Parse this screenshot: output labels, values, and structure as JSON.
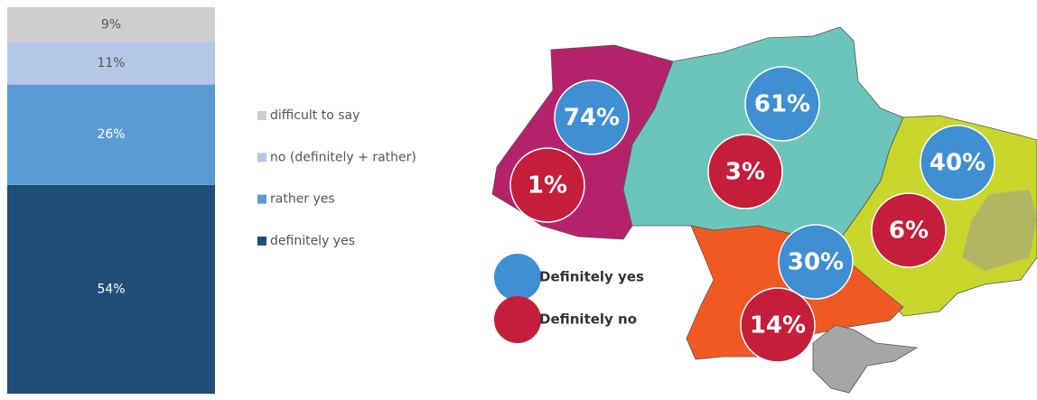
{
  "chart_data": [
    {
      "type": "bar",
      "stacked": true,
      "categories": [
        null
      ],
      "ylim": [
        0,
        100
      ],
      "series": [
        {
          "name": "definitely yes",
          "color": "#1f4e79",
          "values": [
            54
          ],
          "value_labels": [
            "54%"
          ]
        },
        {
          "name": "rather yes",
          "color": "#5b9bd5",
          "values": [
            26
          ],
          "value_labels": [
            "26%"
          ]
        },
        {
          "name": "no (definitely + rather)",
          "color": "#b4c7e7",
          "values": [
            11
          ],
          "value_labels": [
            "11%"
          ]
        },
        {
          "name": "difficult to say",
          "color": "#d0cece",
          "values": [
            9
          ],
          "value_labels": [
            "9%"
          ]
        }
      ]
    },
    {
      "type": "bubble_map",
      "series": [
        {
          "name": "Definitely yes",
          "color": "#3f8fd2",
          "values": [
            74,
            61,
            40,
            30
          ],
          "value_labels": [
            "74%",
            "61%",
            "40%",
            "30%"
          ]
        },
        {
          "name": "Definitely no",
          "color": "#c41e3a",
          "values": [
            1,
            3,
            6,
            14
          ],
          "value_labels": [
            "1%",
            "3%",
            "6%",
            "14%"
          ]
        }
      ]
    }
  ]
}
